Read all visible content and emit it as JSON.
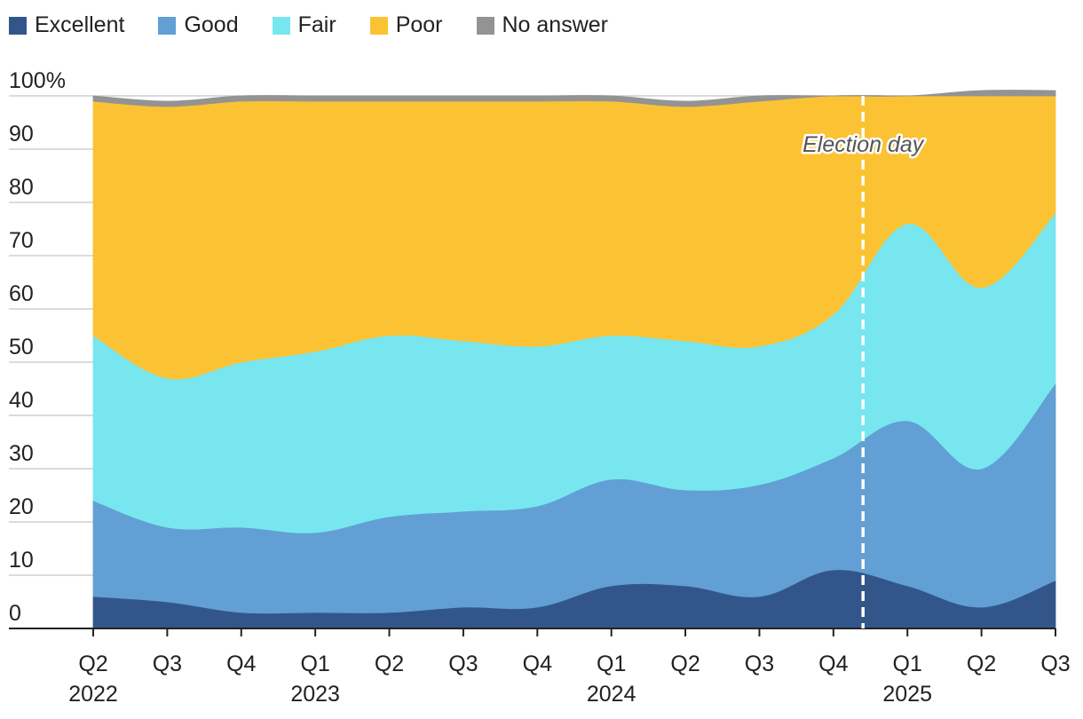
{
  "chart_data": {
    "type": "area",
    "stacked": true,
    "title": "",
    "xlabel": "",
    "ylabel": "",
    "ylim": [
      0,
      100
    ],
    "y_ticks": [
      "0",
      "10",
      "20",
      "30",
      "40",
      "50",
      "60",
      "70",
      "80",
      "90",
      "100%"
    ],
    "x_quarters": [
      "Q2",
      "Q3",
      "Q4",
      "Q1",
      "Q2",
      "Q3",
      "Q4",
      "Q1",
      "Q2",
      "Q3",
      "Q4",
      "Q1",
      "Q2",
      "Q3"
    ],
    "x_years": [
      {
        "label": "2022",
        "at_index": 0
      },
      {
        "label": "2023",
        "at_index": 3
      },
      {
        "label": "2024",
        "at_index": 7
      },
      {
        "label": "2025",
        "at_index": 11
      }
    ],
    "legend_position": "top-left",
    "grid": true,
    "series": [
      {
        "name": "Excellent",
        "color": "#33568a",
        "values": [
          6,
          5,
          3,
          3,
          3,
          4,
          4,
          8,
          8,
          6,
          11,
          8,
          4,
          9
        ]
      },
      {
        "name": "Good",
        "color": "#629fd4",
        "values": [
          18,
          14,
          16,
          15,
          18,
          18,
          19,
          20,
          18,
          21,
          21,
          31,
          26,
          37
        ]
      },
      {
        "name": "Fair",
        "color": "#78e6ee",
        "values": [
          31,
          28,
          31,
          34,
          34,
          32,
          30,
          27,
          28,
          26,
          27,
          37,
          34,
          32
        ]
      },
      {
        "name": "Poor",
        "color": "#fbc334",
        "values": [
          44,
          51,
          49,
          47,
          44,
          45,
          46,
          44,
          44,
          46,
          41,
          24,
          36,
          22
        ]
      },
      {
        "name": "No answer",
        "color": "#939393",
        "values": [
          1,
          1,
          1,
          1,
          1,
          1,
          1,
          1,
          1,
          1,
          0,
          0,
          1,
          1
        ]
      }
    ],
    "annotations": [
      {
        "text": "Election day",
        "x_index": 10.4,
        "style": "dashed-vertical-line"
      }
    ]
  }
}
